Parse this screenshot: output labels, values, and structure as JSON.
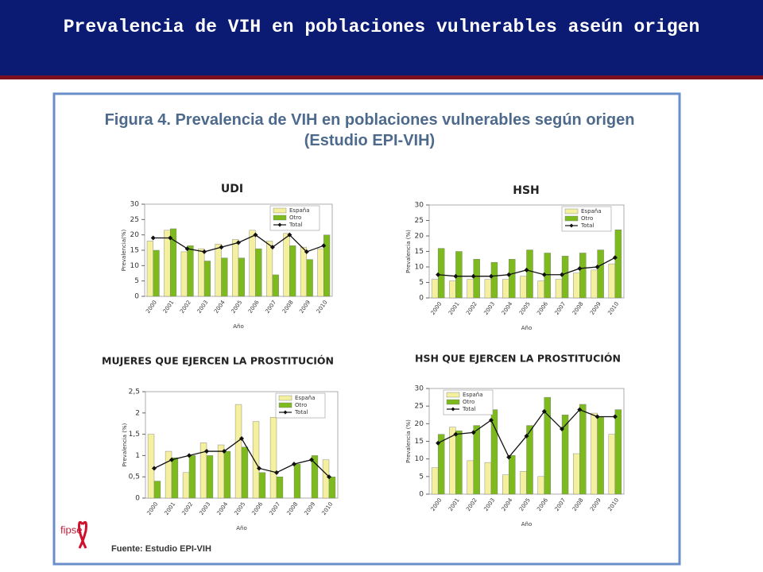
{
  "header": {
    "title": "Prevalencia de VIH en poblaciones vulnerables aseún origen"
  },
  "figure_title": "Figura 4. Prevalencia de VIH en poblaciones vulnerables según origen (Estudio EPI-VIH)",
  "source": "Fuente: Estudio EPI-VIH",
  "logo": "fipse",
  "chart_data": [
    {
      "type": "bar_line",
      "title": "UDI",
      "ylabel": "Prevalencia(%)",
      "xlabel": "Año",
      "categories": [
        "2000",
        "2001",
        "2002",
        "2003",
        "2004",
        "2005",
        "2006",
        "2007",
        "2008",
        "2009",
        "2010"
      ],
      "ylim": [
        0,
        30
      ],
      "yticks": [
        0,
        5,
        10,
        15,
        20,
        25,
        30
      ],
      "legend": "top-right",
      "series": [
        {
          "name": "España",
          "color": "#f4f0a0",
          "kind": "bar",
          "values": [
            18,
            21.5,
            14.5,
            15.5,
            17,
            18.5,
            21.5,
            18,
            20.5,
            16,
            15.5
          ]
        },
        {
          "name": "Otro",
          "color": "#7dba1e",
          "kind": "bar",
          "values": [
            15,
            22,
            16.5,
            11.5,
            12.5,
            12.5,
            15.5,
            7,
            16.5,
            12,
            20
          ]
        },
        {
          "name": "Total",
          "color": "#111111",
          "kind": "line",
          "values": [
            19,
            19,
            15.5,
            14.5,
            16,
            17.5,
            20,
            16,
            20,
            14.5,
            16.5
          ]
        }
      ]
    },
    {
      "type": "bar_line",
      "title": "HSH",
      "ylabel": "Prevalencia (%)",
      "xlabel": "Año",
      "categories": [
        "2000",
        "2001",
        "2002",
        "2003",
        "2004",
        "2005",
        "2006",
        "2007",
        "2008",
        "2009",
        "2010"
      ],
      "ylim": [
        0,
        30
      ],
      "yticks": [
        0,
        5,
        10,
        15,
        20,
        25,
        30
      ],
      "legend": "top-right",
      "series": [
        {
          "name": "España",
          "color": "#f4f0a0",
          "kind": "bar",
          "values": [
            6,
            5.5,
            6,
            6,
            6,
            7,
            5.5,
            6,
            8,
            9,
            11
          ]
        },
        {
          "name": "Otro",
          "color": "#7dba1e",
          "kind": "bar",
          "values": [
            16,
            15,
            12.5,
            11.5,
            12.5,
            15.5,
            14.5,
            13.5,
            14.5,
            15.5,
            22
          ]
        },
        {
          "name": "Total",
          "color": "#111111",
          "kind": "line",
          "values": [
            7.5,
            7,
            7,
            7,
            7.5,
            9,
            7.5,
            7.5,
            9.5,
            10,
            13
          ]
        }
      ]
    },
    {
      "type": "bar_line",
      "title": "MUJERES QUE EJERCEN LA PROSTITUCIÓN",
      "ylabel": "Prevalencia (%)",
      "xlabel": "Año",
      "categories": [
        "2000",
        "2001",
        "2002",
        "2003",
        "2004",
        "2005",
        "2006",
        "2007",
        "2008",
        "2009",
        "2010"
      ],
      "ylim": [
        0,
        2.5
      ],
      "yticks": [
        0,
        {
          "value": 0.5,
          "label": "0,5"
        },
        1,
        {
          "value": 1.5,
          "label": "1,5"
        },
        2,
        {
          "value": 2.5,
          "label": "2,5"
        }
      ],
      "legend": "top-right",
      "series": [
        {
          "name": "España",
          "color": "#f4f0a0",
          "kind": "bar",
          "values": [
            1.5,
            1.1,
            0.6,
            1.3,
            1.25,
            2.2,
            1.8,
            1.9,
            null,
            null,
            0.9
          ]
        },
        {
          "name": "Otro",
          "color": "#7dba1e",
          "kind": "bar",
          "values": [
            0.4,
            0.95,
            1.0,
            1.0,
            1.1,
            1.2,
            0.6,
            0.5,
            0.8,
            1.0,
            0.5
          ]
        },
        {
          "name": "Total",
          "color": "#111111",
          "kind": "line",
          "values": [
            0.7,
            0.9,
            1.0,
            1.1,
            1.1,
            1.4,
            0.7,
            0.6,
            0.8,
            0.9,
            0.5
          ]
        }
      ]
    },
    {
      "type": "bar_line",
      "title": "HSH QUE EJERCEN LA PROSTITUCIÓN",
      "ylabel": "Prevalencia (%)",
      "xlabel": "Año",
      "categories": [
        "2000",
        "2001",
        "2002",
        "2003",
        "2004",
        "2005",
        "2006",
        "2007",
        "2008",
        "2009",
        "2010"
      ],
      "ylim": [
        0,
        30
      ],
      "yticks": [
        0,
        5,
        10,
        15,
        20,
        25,
        30
      ],
      "legend": "top-left",
      "series": [
        {
          "name": "España",
          "color": "#f4f0a0",
          "kind": "bar",
          "values": [
            7.5,
            19,
            9.5,
            9,
            5.5,
            6.5,
            5,
            null,
            11.5,
            23,
            17
          ]
        },
        {
          "name": "Otro",
          "color": "#7dba1e",
          "kind": "bar",
          "values": [
            17,
            18,
            19.5,
            24,
            11,
            19.5,
            27.5,
            22.5,
            25.5,
            22,
            24
          ]
        },
        {
          "name": "Total",
          "color": "#111111",
          "kind": "line",
          "values": [
            14.5,
            17,
            17.5,
            21,
            10.5,
            16.5,
            23.5,
            18.5,
            24,
            22,
            22
          ]
        }
      ]
    }
  ]
}
